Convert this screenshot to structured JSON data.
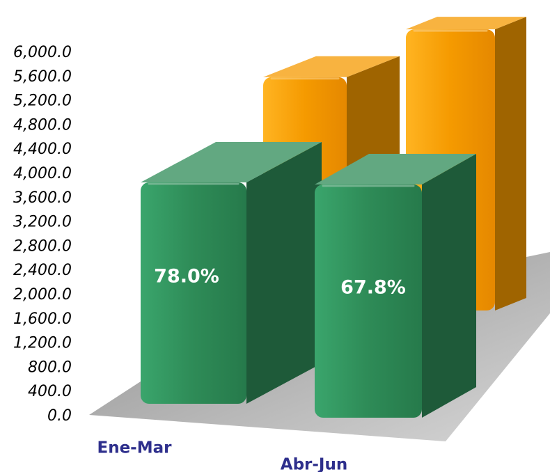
{
  "chart_data": {
    "type": "bar",
    "style": "3d-column",
    "categories": [
      "Ene-Mar",
      "Abr-Jun"
    ],
    "ylim": [
      0,
      6000
    ],
    "y_tick_step": 400,
    "y_ticks": [
      "0.0",
      "400.0",
      "800.0",
      "1,200.0",
      "1,600.0",
      "2,000.0",
      "2,400.0",
      "2,800.0",
      "3,200.0",
      "3,600.0",
      "4,000.0",
      "4,400.0",
      "4,800.0",
      "5,200.0",
      "5,600.0",
      "6,000.0"
    ],
    "grid": false,
    "legend": "none",
    "series": [
      {
        "values": [
          5100,
          6100
        ],
        "color": "#f59a00"
      },
      {
        "values": [
          4000,
          4300
        ],
        "color": "#2e8b57",
        "data_labels": [
          "78.0%",
          "67.8%"
        ]
      }
    ],
    "title": "",
    "xlabel": "",
    "ylabel": ""
  }
}
